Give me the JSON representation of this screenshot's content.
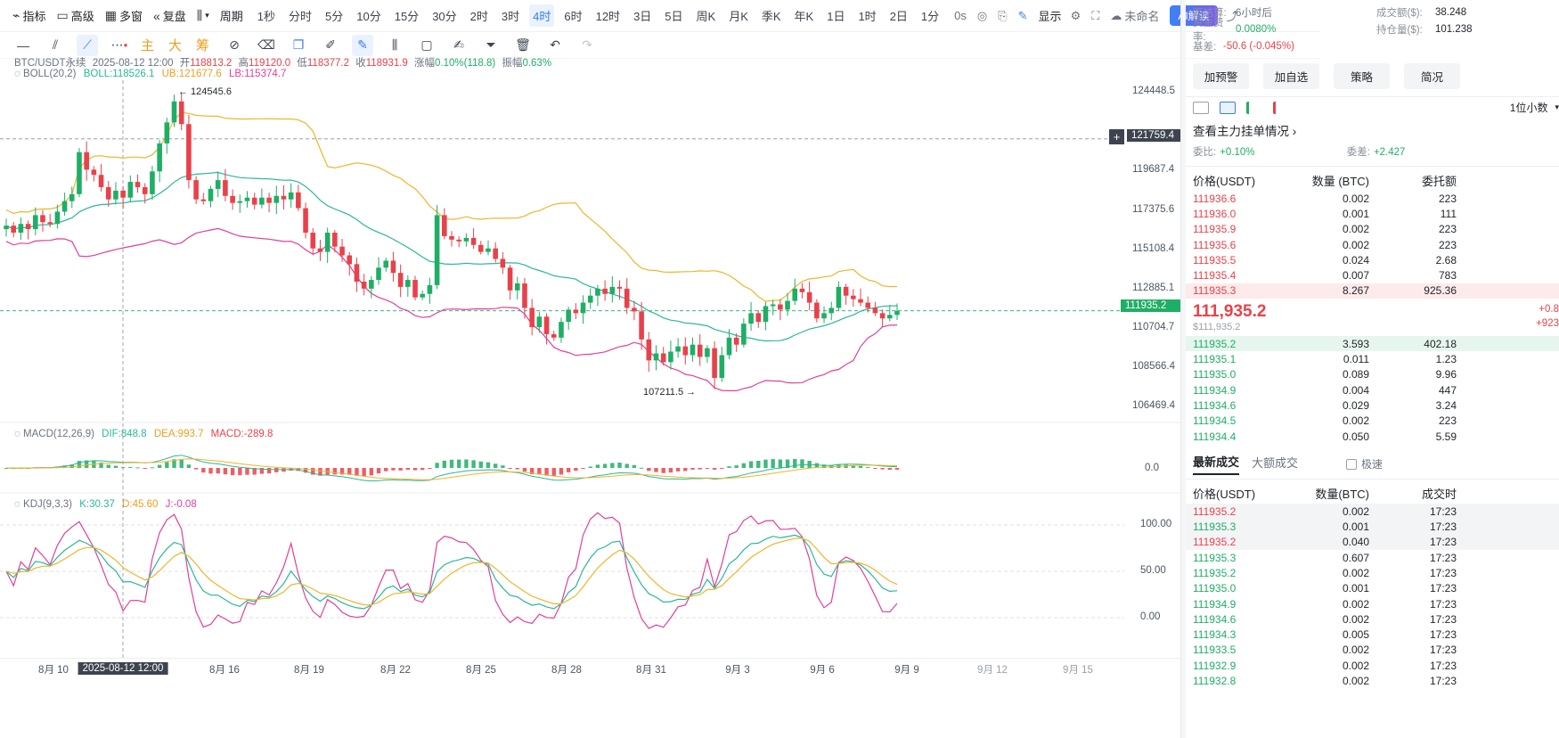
{
  "toolbar": {
    "indicators": "指标",
    "advanced": "高级",
    "multi_window": "多窗",
    "replay": "复盘",
    "period": "周期",
    "intervals": [
      "1秒",
      "分时",
      "5分",
      "10分",
      "15分",
      "30分",
      "2时",
      "3时",
      "4时",
      "6时",
      "12时",
      "3日",
      "5日",
      "周K",
      "月K",
      "季K",
      "年K",
      "1日",
      "1时",
      "2日",
      "1分"
    ],
    "active_interval": "4时",
    "countdown": "0s",
    "display": "显示",
    "unnamed": "未命名",
    "ai_button": "AI解读"
  },
  "drawbar": {
    "main": "主",
    "big": "大",
    "chips": "筹"
  },
  "legend": {
    "symbol": "BTC/USDT永续",
    "time": "2025-08-12 12:00",
    "open_label": "开",
    "open": "118813.2",
    "high_label": "高",
    "high": "119120.0",
    "low_label": "低",
    "low": "118377.2",
    "close_label": "收",
    "close": "118931.9",
    "change_label": "涨幅",
    "change": "0.10%(118.8)",
    "amp_label": "振幅",
    "amp": "0.63%",
    "boll": "BOLL(20,2)",
    "boll_mb": "BOLL:118526.1",
    "boll_ub": "UB:121677.6",
    "boll_lb": "LB:115374.7",
    "macd": "MACD(12,26,9)",
    "macd_dif": "DIF:848.8",
    "macd_dea": "DEA:993.7",
    "macd_val": "MACD:-289.8",
    "kdj": "KDJ(9,3,3)",
    "kdj_k": "K:30.37",
    "kdj_d": "D:45.60",
    "kdj_j": "J:-0.08"
  },
  "chart_data": {
    "type": "candlestick",
    "price_axis": [
      "124448.5",
      "119687.4",
      "117375.6",
      "115108.4",
      "112885.1",
      "110704.7",
      "108566.4",
      "106469.4"
    ],
    "crosshair_price": "121759.4",
    "last_price": "111935.2",
    "high_marker": "124545.6",
    "low_marker": "107211.5",
    "macd_axis": [
      "0.0"
    ],
    "kdj_axis": [
      "100.00",
      "50.00",
      "0.00"
    ],
    "x_labels": [
      "8月 10",
      "8月 16",
      "8月 19",
      "8月 22",
      "8月 25",
      "8月 28",
      "8月 31",
      "9月 3",
      "9月 6",
      "9月 9",
      "9月 12",
      "9月 15"
    ],
    "crosshair_time": "2025-08-12 12:00",
    "close": [
      116800,
      116400,
      116900,
      116600,
      117400,
      117000,
      116900,
      117600,
      118200,
      118600,
      121000,
      120000,
      119700,
      119000,
      118300,
      118800,
      118400,
      119300,
      119000,
      118600,
      119900,
      121500,
      122700,
      123900,
      122600,
      119400,
      118300,
      118200,
      118900,
      119400,
      118500,
      118100,
      118200,
      118400,
      118000,
      118400,
      118100,
      118500,
      118300,
      118700,
      117800,
      116400,
      115500,
      115300,
      116400,
      115600,
      115100,
      114600,
      113600,
      113200,
      113700,
      114400,
      114800,
      114100,
      113300,
      113700,
      112700,
      112900,
      113400,
      117400,
      116200,
      116000,
      115900,
      116100,
      115700,
      115300,
      115500,
      114900,
      114400,
      113100,
      113500,
      112100,
      111000,
      111600,
      110600,
      110400,
      111300,
      112000,
      111800,
      112400,
      112800,
      113200,
      112900,
      113300,
      113200,
      112100,
      111900,
      110300,
      109100,
      109500,
      109000,
      109600,
      109900,
      109400,
      110000,
      109300,
      109800,
      108100,
      109400,
      110400,
      110000,
      111200,
      111800,
      111300,
      112200,
      112300,
      112000,
      112500,
      113200,
      113000,
      112400,
      111500,
      111800,
      112100,
      113300,
      112800,
      112600,
      112400,
      112100,
      111800,
      111500,
      111700,
      111935
    ]
  },
  "right": {
    "settle_label": "距结算:",
    "settle": "6小时后",
    "vol_label": "成交额($):",
    "vol": "38.248",
    "funding_label": "资金费率:",
    "funding": "0.0080%",
    "oi_label": "持仓量($):",
    "oi": "101.238",
    "basis_label": "基差:",
    "basis": "-50.6 (-0.045%)",
    "buttons": [
      "加预警",
      "加自选",
      "策略",
      "简况"
    ],
    "decimals": "1位小数",
    "ob_title": "查看主力挂单情况",
    "ratio_label": "委比:",
    "ratio": "+0.10%",
    "diff_label": "委差:",
    "diff": "+2.427",
    "col_price": "价格(USDT)",
    "col_qty": "数量 (BTC)",
    "col_total": "委托额",
    "asks": [
      {
        "p": "111936.6",
        "q": "0.002",
        "t": "223"
      },
      {
        "p": "111936.0",
        "q": "0.001",
        "t": "111"
      },
      {
        "p": "111935.9",
        "q": "0.002",
        "t": "223"
      },
      {
        "p": "111935.6",
        "q": "0.002",
        "t": "223"
      },
      {
        "p": "111935.5",
        "q": "0.024",
        "t": "2.68"
      },
      {
        "p": "111935.4",
        "q": "0.007",
        "t": "783"
      },
      {
        "p": "111935.3",
        "q": "8.267",
        "t": "925.36"
      }
    ],
    "mid_price": "111,935.2",
    "mid_usd": "$111,935.2",
    "mid_chg1": "+0.8",
    "mid_chg2": "+923",
    "bids": [
      {
        "p": "111935.2",
        "q": "3.593",
        "t": "402.18"
      },
      {
        "p": "111935.1",
        "q": "0.011",
        "t": "1.23"
      },
      {
        "p": "111935.0",
        "q": "0.089",
        "t": "9.96"
      },
      {
        "p": "111934.9",
        "q": "0.004",
        "t": "447"
      },
      {
        "p": "111934.6",
        "q": "0.029",
        "t": "3.24"
      },
      {
        "p": "111934.5",
        "q": "0.002",
        "t": "223"
      },
      {
        "p": "111934.4",
        "q": "0.050",
        "t": "5.59"
      }
    ],
    "trades_tab": "最新成交",
    "big_trades_tab": "大额成交",
    "fast_label": "极速",
    "col_tprice": "价格(USDT)",
    "col_tqty": "数量(BTC)",
    "col_ttime": "成交时",
    "trades": [
      {
        "p": "111935.2",
        "q": "0.002",
        "t": "17:23",
        "side": "sell"
      },
      {
        "p": "111935.3",
        "q": "0.001",
        "t": "17:23",
        "side": "buy"
      },
      {
        "p": "111935.2",
        "q": "0.040",
        "t": "17:23",
        "side": "sell"
      },
      {
        "p": "111935.3",
        "q": "0.607",
        "t": "17:23",
        "side": "buy"
      },
      {
        "p": "111935.2",
        "q": "0.002",
        "t": "17:23",
        "side": "buy"
      },
      {
        "p": "111935.0",
        "q": "0.001",
        "t": "17:23",
        "side": "buy"
      },
      {
        "p": "111934.9",
        "q": "0.002",
        "t": "17:23",
        "side": "buy"
      },
      {
        "p": "111934.6",
        "q": "0.002",
        "t": "17:23",
        "side": "buy"
      },
      {
        "p": "111934.3",
        "q": "0.005",
        "t": "17:23",
        "side": "buy"
      },
      {
        "p": "111933.5",
        "q": "0.002",
        "t": "17:23",
        "side": "buy"
      },
      {
        "p": "111932.9",
        "q": "0.002",
        "t": "17:23",
        "side": "buy"
      },
      {
        "p": "111932.8",
        "q": "0.002",
        "t": "17:23",
        "side": "buy"
      }
    ]
  }
}
